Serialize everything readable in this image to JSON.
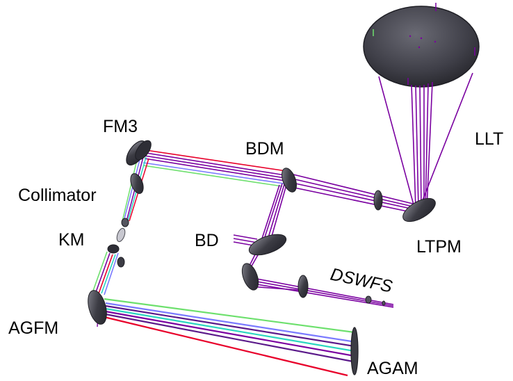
{
  "labels": {
    "fm3": "FM3",
    "bdm": "BDM",
    "llt": "LLT",
    "collimator": "Collimator",
    "km": "KM",
    "bd": "BD",
    "ltpm": "LTPM",
    "dswfs": "DSWFS",
    "agfm": "AGFM",
    "agam": "AGAM"
  },
  "colors": {
    "beam_purple": "#7a00a0",
    "beam_dark_purple": "#5b1a8a",
    "beam_red": "#e8002a",
    "beam_green": "#6de06d",
    "beam_cyan": "#2ad6c0",
    "beam_blue": "#7a7aff",
    "mirror_dark": "#2e2e36",
    "mirror_mid": "#55555f"
  }
}
